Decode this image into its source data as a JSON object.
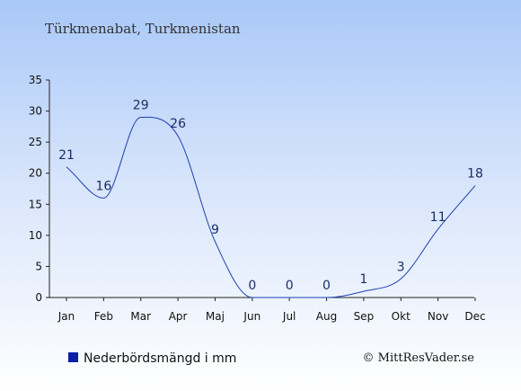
{
  "chart_data": {
    "type": "line",
    "title": "Türkmenabat, Turkmenistan",
    "categories": [
      "Jan",
      "Feb",
      "Mar",
      "Apr",
      "Maj",
      "Jun",
      "Jul",
      "Aug",
      "Sep",
      "Okt",
      "Nov",
      "Dec"
    ],
    "series": [
      {
        "name": "Nederbördsmängd i mm",
        "values": [
          21,
          16,
          29,
          26,
          9,
          0,
          0,
          0,
          1,
          3,
          11,
          18
        ],
        "color": "#1f3fb0"
      }
    ],
    "data_labels": [
      "21",
      "16",
      "29",
      "26",
      "9",
      "0",
      "0",
      "0",
      "1",
      "3",
      "11",
      "18"
    ],
    "y_ticks": [
      0,
      5,
      10,
      15,
      20,
      25,
      30,
      35
    ],
    "ylim": [
      0,
      35
    ],
    "grid": false,
    "legend": {
      "position": "bottom-left",
      "label": "Nederbördsmängd i mm",
      "marker_color": "#0a1fa8"
    },
    "copyright": "© MittResVader.se"
  }
}
